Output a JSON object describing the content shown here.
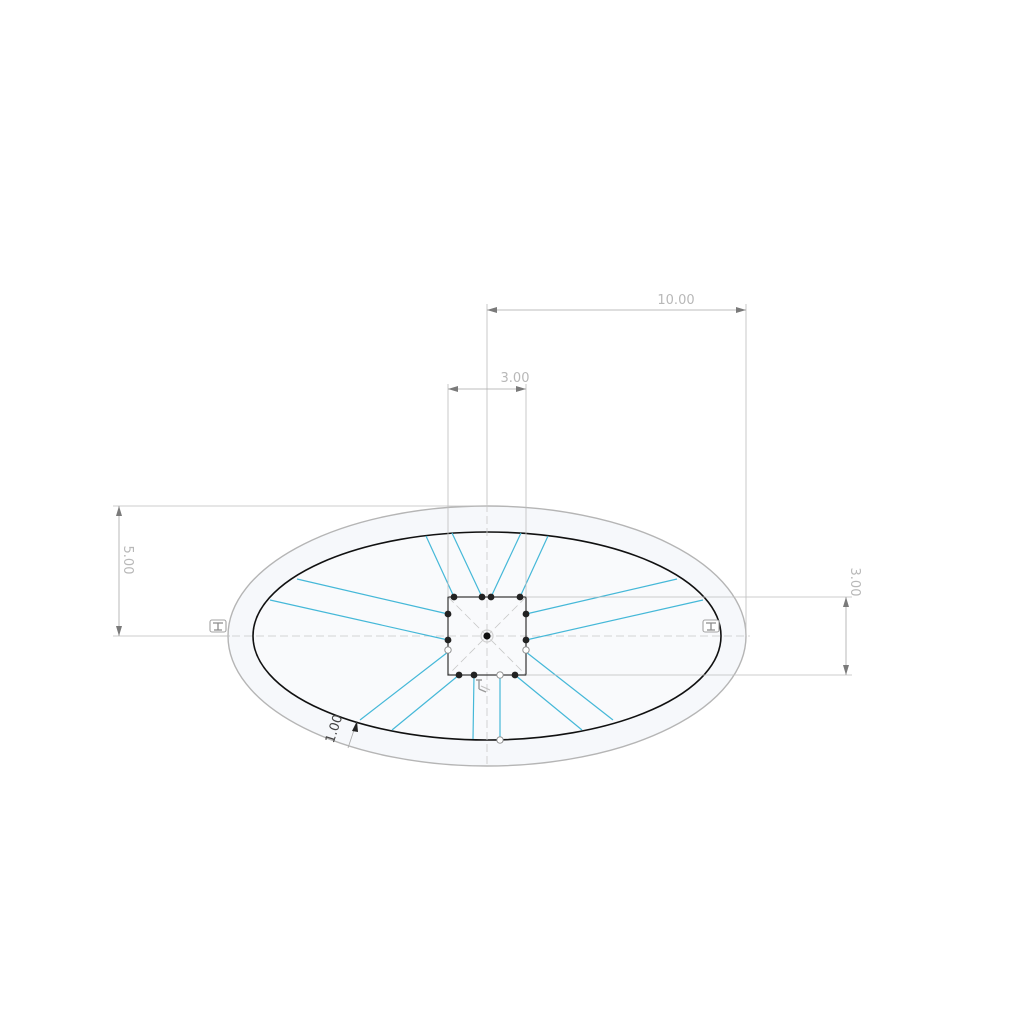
{
  "sketch": {
    "dimensions": {
      "overall_width": "10.00",
      "hub_width": "3.00",
      "half_height": "5.00",
      "hub_height": "3.00",
      "rim_offset": "1.00"
    },
    "constraint_icons": [
      "tangent-constraint-icon",
      "tangent-constraint-icon",
      "fix-constraint-icon"
    ],
    "colors": {
      "spoke": "#45b8d8",
      "inner_ellipse": "#111111",
      "outer_ellipse": "#b5b5b5",
      "fill": "#f6f8fb",
      "dimension": "#a9a9a9"
    }
  }
}
